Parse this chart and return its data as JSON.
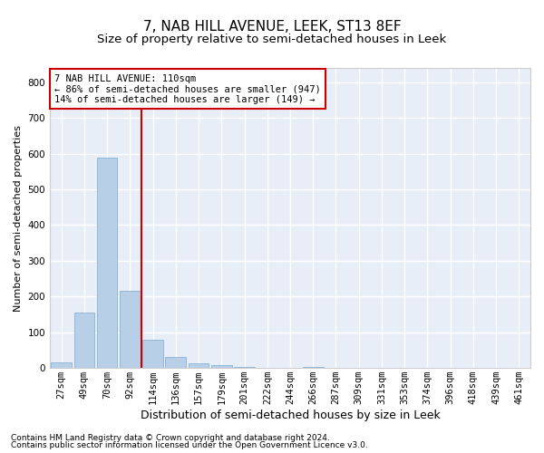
{
  "title": "7, NAB HILL AVENUE, LEEK, ST13 8EF",
  "subtitle": "Size of property relative to semi-detached houses in Leek",
  "xlabel": "Distribution of semi-detached houses by size in Leek",
  "ylabel": "Number of semi-detached properties",
  "footnote1": "Contains HM Land Registry data © Crown copyright and database right 2024.",
  "footnote2": "Contains public sector information licensed under the Open Government Licence v3.0.",
  "bar_labels": [
    "27sqm",
    "49sqm",
    "70sqm",
    "92sqm",
    "114sqm",
    "136sqm",
    "157sqm",
    "179sqm",
    "201sqm",
    "222sqm",
    "244sqm",
    "266sqm",
    "287sqm",
    "309sqm",
    "331sqm",
    "353sqm",
    "374sqm",
    "396sqm",
    "418sqm",
    "439sqm",
    "461sqm"
  ],
  "bar_values": [
    15,
    155,
    590,
    215,
    80,
    30,
    12,
    8,
    3,
    1,
    0,
    4,
    0,
    1,
    0,
    0,
    0,
    0,
    0,
    0,
    0
  ],
  "bar_color": "#b8cfe8",
  "bar_edge_color": "#7aaad0",
  "bg_color": "#e8eef8",
  "grid_color": "#ffffff",
  "vline_index": 4,
  "vline_color": "#cc0000",
  "annotation_line1": "7 NAB HILL AVENUE: 110sqm",
  "annotation_line2": "← 86% of semi-detached houses are smaller (947)",
  "annotation_line3": "14% of semi-detached houses are larger (149) →",
  "annotation_box_color": "#cc0000",
  "ylim": [
    0,
    840
  ],
  "yticks": [
    0,
    100,
    200,
    300,
    400,
    500,
    600,
    700,
    800
  ],
  "title_fontsize": 11,
  "subtitle_fontsize": 9.5,
  "xlabel_fontsize": 9,
  "ylabel_fontsize": 8,
  "tick_fontsize": 7.5,
  "annotation_fontsize": 7.5,
  "footnote_fontsize": 6.5
}
